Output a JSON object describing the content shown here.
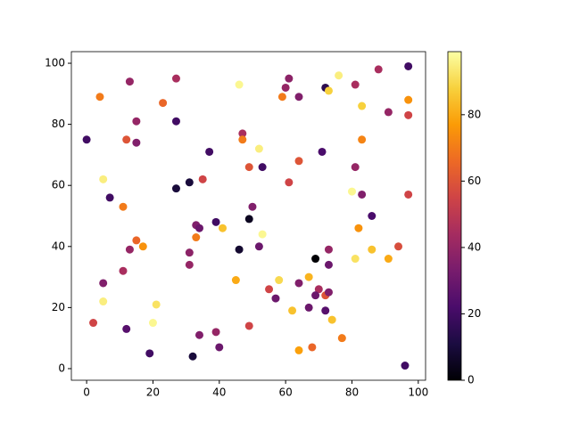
{
  "chart_data": {
    "type": "scatter",
    "colormap": "inferno",
    "x": [
      0,
      4,
      13,
      23,
      27,
      27,
      15,
      12,
      15,
      5,
      7,
      11,
      13,
      15,
      17,
      11,
      5,
      5,
      2,
      12,
      21,
      20,
      19,
      27,
      31,
      37,
      35,
      33,
      34,
      39,
      41,
      33,
      31,
      31,
      34,
      39,
      40,
      32,
      46,
      47,
      47,
      52,
      53,
      49,
      50,
      49,
      53,
      46,
      52,
      45,
      49,
      55,
      57,
      58,
      62,
      64,
      64,
      67,
      67,
      68,
      69,
      70,
      69,
      72,
      73,
      72,
      74,
      77,
      60,
      61,
      59,
      64,
      72,
      73,
      76,
      81,
      88,
      97,
      97,
      83,
      91,
      97,
      71,
      64,
      61,
      81,
      83,
      80,
      83,
      97,
      86,
      82,
      73,
      73,
      81,
      86,
      91,
      94,
      96
    ],
    "y": [
      75,
      89,
      94,
      87,
      95,
      81,
      81,
      75,
      74,
      62,
      56,
      53,
      39,
      42,
      40,
      32,
      28,
      22,
      15,
      13,
      21,
      15,
      5,
      59,
      61,
      71,
      62,
      47,
      46,
      48,
      46,
      43,
      38,
      34,
      11,
      12,
      7,
      4,
      93,
      77,
      75,
      72,
      66,
      66,
      53,
      49,
      44,
      39,
      40,
      29,
      14,
      26,
      23,
      29,
      19,
      28,
      6,
      20,
      30,
      7,
      36,
      26,
      24,
      24,
      25,
      19,
      16,
      10,
      92,
      95,
      89,
      89,
      92,
      91,
      96,
      93,
      98,
      99,
      88,
      86,
      84,
      83,
      71,
      68,
      61,
      66,
      75,
      58,
      57,
      57,
      50,
      46,
      39,
      34,
      36,
      39,
      36,
      40,
      1
    ],
    "c": [
      20,
      70,
      40,
      65,
      45,
      20,
      40,
      60,
      35,
      95,
      20,
      70,
      40,
      65,
      75,
      45,
      35,
      95,
      55,
      25,
      92,
      97,
      20,
      10,
      10,
      20,
      55,
      35,
      30,
      20,
      85,
      70,
      38,
      40,
      35,
      40,
      30,
      10,
      97,
      45,
      70,
      95,
      20,
      60,
      35,
      5,
      97,
      8,
      30,
      80,
      55,
      55,
      30,
      90,
      85,
      35,
      78,
      30,
      82,
      65,
      0,
      45,
      30,
      60,
      35,
      25,
      85,
      70,
      40,
      38,
      70,
      35,
      15,
      88,
      95,
      45,
      45,
      20,
      75,
      88,
      40,
      55,
      22,
      60,
      55,
      40,
      72,
      97,
      35,
      55,
      22,
      75,
      40,
      30,
      92,
      85,
      80,
      58,
      20
    ],
    "xlim": [
      -4.6,
      102.2
    ],
    "ylim": [
      -3.8,
      103.8
    ],
    "xticks": [
      0,
      20,
      40,
      60,
      80,
      100
    ],
    "yticks": [
      0,
      20,
      40,
      60,
      80,
      100
    ],
    "clim": [
      0,
      99
    ],
    "cticks": [
      0,
      20,
      40,
      60,
      80
    ]
  }
}
